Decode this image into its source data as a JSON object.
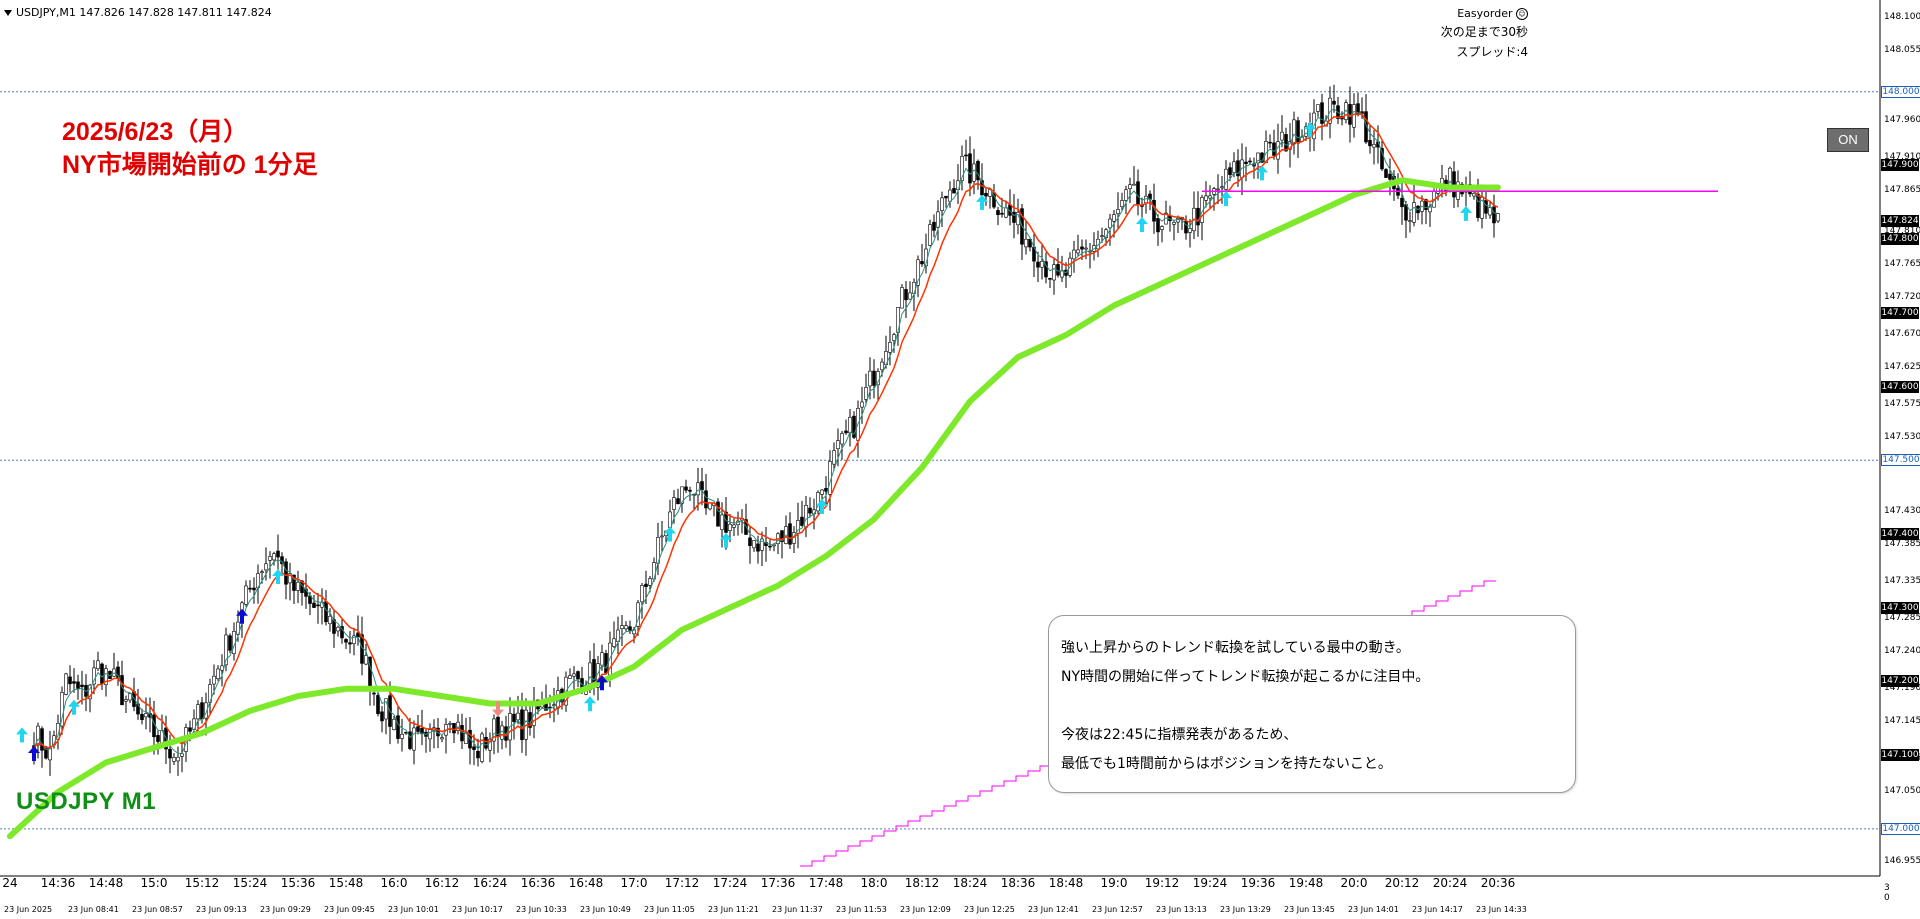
{
  "window": {
    "symbol_caption": "USDJPY,M1  147.826 147.828 147.811 147.824"
  },
  "ea_panel": {
    "name": "Easyorder",
    "bar_timer": "次の足まで30秒",
    "spread": "スプレッド:4"
  },
  "on_button": {
    "label": "ON"
  },
  "title": {
    "line1": "2025/6/23（月）",
    "line2": "NY市場開始前の 1分足"
  },
  "symbol_label": "USDJPY M1",
  "note": {
    "line1": "強い上昇からのトレンド転換を試している最中の動き。",
    "line2": "NY時間の開始に伴ってトレンド転換が起こるかに注目中。",
    "line3": "今夜は22:45に指標発表があるため、",
    "line4": "最低でも1時間前からはポジションを持たないこと。"
  },
  "price_axis": {
    "ticks": [
      "148.100",
      "148.055",
      "147.960",
      "147.910",
      "147.865",
      "147.810",
      "147.765",
      "147.720",
      "147.670",
      "147.625",
      "147.575",
      "147.530",
      "147.430",
      "147.385",
      "147.335",
      "147.285",
      "147.240",
      "147.190",
      "147.145",
      "147.095",
      "147.050",
      "147.000",
      "146.955"
    ],
    "badges": [
      "148.000",
      "147.900",
      "147.824",
      "147.800",
      "147.700",
      "147.600",
      "147.500",
      "147.400",
      "147.300",
      "147.200",
      "147.100",
      "147.000"
    ],
    "sub_scale": [
      "3",
      "0"
    ]
  },
  "time_axis": {
    "major": [
      "24",
      "14:36",
      "14:48",
      "15:0",
      "15:12",
      "15:24",
      "15:36",
      "15:48",
      "16:0",
      "16:12",
      "16:24",
      "16:36",
      "16:48",
      "17:0",
      "17:12",
      "17:24",
      "17:36",
      "17:48",
      "18:0",
      "18:12",
      "18:24",
      "18:36",
      "18:48",
      "19:0",
      "19:12",
      "19:24",
      "19:36",
      "19:48",
      "20:0",
      "20:12",
      "20:24",
      "20:36"
    ],
    "minor": [
      "23 Jun 2025",
      "23 Jun 08:41",
      "23 Jun 08:57",
      "23 Jun 09:13",
      "23 Jun 09:29",
      "23 Jun 09:45",
      "23 Jun 10:01",
      "23 Jun 10:17",
      "23 Jun 10:33",
      "23 Jun 10:49",
      "23 Jun 11:05",
      "23 Jun 11:21",
      "23 Jun 11:37",
      "23 Jun 11:53",
      "23 Jun 12:09",
      "23 Jun 12:25",
      "23 Jun 12:41",
      "23 Jun 12:57",
      "23 Jun 13:13",
      "23 Jun 13:29",
      "23 Jun 13:45",
      "23 Jun 14:01",
      "23 Jun 14:17",
      "23 Jun 14:33"
    ]
  },
  "colors": {
    "candle": "#000000",
    "fast_ma": "#ff3300",
    "signal_ma": "#2f8f7f",
    "slow_ma": "#7ee82a",
    "resistance": "#ff00ff",
    "counter_line": "#ff00ff",
    "arrow_light": "#1fd6ee",
    "arrow_dark": "#0a0ad0",
    "arrow_down": "#f08a80",
    "grid_dashed": "#5a7fb0"
  },
  "chart_data": {
    "type": "line",
    "symbol": "USDJPY",
    "timeframe": "M1",
    "last_ohlc": {
      "open": 147.826,
      "high": 147.828,
      "low": 147.811,
      "close": 147.824
    },
    "ylim": [
      146.955,
      148.1
    ],
    "levels_dashed": [
      148.0,
      147.5,
      147.0
    ],
    "resistance_level": 147.865,
    "price_path": [
      [
        "14:30",
        147.13
      ],
      [
        "14:34",
        147.1
      ],
      [
        "14:38",
        147.2
      ],
      [
        "14:42",
        147.18
      ],
      [
        "14:46",
        147.22
      ],
      [
        "14:50",
        147.2
      ],
      [
        "14:56",
        147.15
      ],
      [
        "15:02",
        147.12
      ],
      [
        "15:06",
        147.1
      ],
      [
        "15:10",
        147.14
      ],
      [
        "15:16",
        147.22
      ],
      [
        "15:22",
        147.3
      ],
      [
        "15:26",
        147.35
      ],
      [
        "15:30",
        147.38
      ],
      [
        "15:34",
        147.33
      ],
      [
        "15:40",
        147.3
      ],
      [
        "15:46",
        147.27
      ],
      [
        "15:52",
        147.24
      ],
      [
        "15:56",
        147.17
      ],
      [
        "16:02",
        147.13
      ],
      [
        "16:08",
        147.11
      ],
      [
        "16:14",
        147.16
      ],
      [
        "16:20",
        147.1
      ],
      [
        "16:26",
        147.14
      ],
      [
        "16:32",
        147.14
      ],
      [
        "16:38",
        147.17
      ],
      [
        "16:44",
        147.2
      ],
      [
        "16:50",
        147.21
      ],
      [
        "16:56",
        147.25
      ],
      [
        "17:00",
        147.28
      ],
      [
        "17:04",
        147.35
      ],
      [
        "17:10",
        147.44
      ],
      [
        "17:14",
        147.47
      ],
      [
        "17:18",
        147.43
      ],
      [
        "17:22",
        147.42
      ],
      [
        "17:28",
        147.4
      ],
      [
        "17:34",
        147.38
      ],
      [
        "17:40",
        147.41
      ],
      [
        "17:46",
        147.45
      ],
      [
        "17:50",
        147.5
      ],
      [
        "17:56",
        147.56
      ],
      [
        "18:02",
        147.65
      ],
      [
        "18:08",
        147.73
      ],
      [
        "18:14",
        147.8
      ],
      [
        "18:18",
        147.86
      ],
      [
        "18:22",
        147.9
      ],
      [
        "18:28",
        147.87
      ],
      [
        "18:34",
        147.83
      ],
      [
        "18:40",
        147.79
      ],
      [
        "18:46",
        147.74
      ],
      [
        "18:52",
        147.78
      ],
      [
        "18:58",
        147.81
      ],
      [
        "19:04",
        147.86
      ],
      [
        "19:10",
        147.83
      ],
      [
        "19:16",
        147.81
      ],
      [
        "19:22",
        147.84
      ],
      [
        "19:28",
        147.88
      ],
      [
        "19:34",
        147.91
      ],
      [
        "19:40",
        147.92
      ],
      [
        "19:46",
        147.95
      ],
      [
        "19:52",
        147.97
      ],
      [
        "19:58",
        147.98
      ],
      [
        "20:02",
        147.96
      ],
      [
        "20:08",
        147.88
      ],
      [
        "20:12",
        147.84
      ],
      [
        "20:18",
        147.85
      ],
      [
        "20:24",
        147.88
      ],
      [
        "20:30",
        147.85
      ],
      [
        "20:36",
        147.82
      ]
    ],
    "slow_ma_path": [
      [
        "14:24",
        146.99
      ],
      [
        "14:36",
        147.05
      ],
      [
        "14:48",
        147.09
      ],
      [
        "15:0",
        147.11
      ],
      [
        "15:12",
        147.13
      ],
      [
        "15:24",
        147.16
      ],
      [
        "15:36",
        147.18
      ],
      [
        "15:48",
        147.19
      ],
      [
        "16:0",
        147.19
      ],
      [
        "16:12",
        147.18
      ],
      [
        "16:24",
        147.17
      ],
      [
        "16:36",
        147.17
      ],
      [
        "16:48",
        147.19
      ],
      [
        "17:0",
        147.22
      ],
      [
        "17:12",
        147.27
      ],
      [
        "17:24",
        147.3
      ],
      [
        "17:36",
        147.33
      ],
      [
        "17:48",
        147.37
      ],
      [
        "18:0",
        147.42
      ],
      [
        "18:12",
        147.49
      ],
      [
        "18:24",
        147.58
      ],
      [
        "18:36",
        147.64
      ],
      [
        "18:48",
        147.67
      ],
      [
        "19:0",
        147.71
      ],
      [
        "19:12",
        147.74
      ],
      [
        "19:24",
        147.77
      ],
      [
        "19:36",
        147.8
      ],
      [
        "19:48",
        147.83
      ],
      [
        "20:0",
        147.86
      ],
      [
        "20:12",
        147.88
      ],
      [
        "20:24",
        147.87
      ],
      [
        "20:36",
        147.87
      ]
    ]
  }
}
